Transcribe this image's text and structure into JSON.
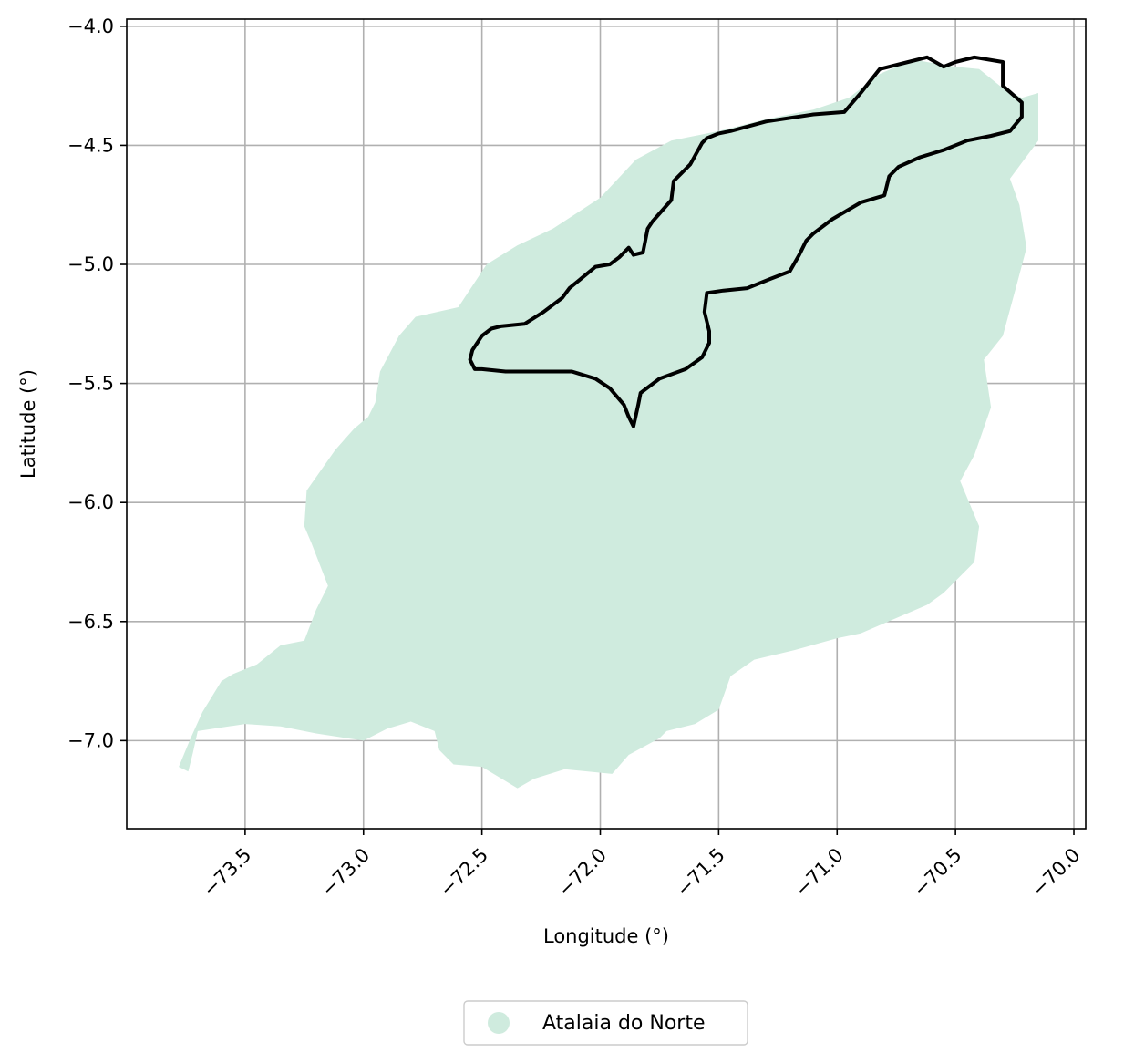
{
  "chart_data": {
    "type": "map",
    "title": "",
    "xlabel": "Longitude (°)",
    "ylabel": "Latitude (°)",
    "xlim": [
      -74.0,
      -69.95
    ],
    "ylim": [
      -7.37,
      -3.97
    ],
    "x_ticks": [
      {
        "value": -73.5,
        "label": "−73.5"
      },
      {
        "value": -73.0,
        "label": "−73.0"
      },
      {
        "value": -72.5,
        "label": "−72.5"
      },
      {
        "value": -72.0,
        "label": "−72.0"
      },
      {
        "value": -71.5,
        "label": "−71.5"
      },
      {
        "value": -71.0,
        "label": "−71.0"
      },
      {
        "value": -70.5,
        "label": "−70.5"
      },
      {
        "value": -70.0,
        "label": "−70.0"
      }
    ],
    "y_ticks": [
      {
        "value": -4.0,
        "label": "−4.0"
      },
      {
        "value": -4.5,
        "label": "−4.5"
      },
      {
        "value": -5.0,
        "label": "−5.0"
      },
      {
        "value": -5.5,
        "label": "−5.5"
      },
      {
        "value": -6.0,
        "label": "−6.0"
      },
      {
        "value": -6.5,
        "label": "−6.5"
      },
      {
        "value": -7.0,
        "label": "−7.0"
      }
    ],
    "grid": true,
    "legend_position": "bottom-center",
    "series": [
      {
        "name": "Atalaia do Norte",
        "kind": "filled-region",
        "color": "#cfebde",
        "coordinates": [
          [
            -73.78,
            -7.11
          ],
          [
            -73.73,
            -6.99
          ],
          [
            -73.68,
            -6.88
          ],
          [
            -73.6,
            -6.75
          ],
          [
            -73.55,
            -6.72
          ],
          [
            -73.45,
            -6.68
          ],
          [
            -73.35,
            -6.6
          ],
          [
            -73.25,
            -6.58
          ],
          [
            -73.2,
            -6.45
          ],
          [
            -73.15,
            -6.35
          ],
          [
            -73.22,
            -6.17
          ],
          [
            -73.25,
            -6.1
          ],
          [
            -73.24,
            -5.95
          ],
          [
            -73.12,
            -5.78
          ],
          [
            -73.04,
            -5.69
          ],
          [
            -72.98,
            -5.64
          ],
          [
            -72.95,
            -5.58
          ],
          [
            -72.93,
            -5.45
          ],
          [
            -72.85,
            -5.3
          ],
          [
            -72.78,
            -5.22
          ],
          [
            -72.6,
            -5.18
          ],
          [
            -72.48,
            -5.0
          ],
          [
            -72.35,
            -4.92
          ],
          [
            -72.2,
            -4.85
          ],
          [
            -72.0,
            -4.72
          ],
          [
            -71.85,
            -4.56
          ],
          [
            -71.7,
            -4.48
          ],
          [
            -71.5,
            -4.44
          ],
          [
            -71.3,
            -4.39
          ],
          [
            -71.1,
            -4.35
          ],
          [
            -70.95,
            -4.3
          ],
          [
            -70.82,
            -4.2
          ],
          [
            -70.68,
            -4.14
          ],
          [
            -70.5,
            -4.17
          ],
          [
            -70.4,
            -4.18
          ],
          [
            -70.3,
            -4.26
          ],
          [
            -70.22,
            -4.3
          ],
          [
            -70.15,
            -4.28
          ],
          [
            -70.15,
            -4.48
          ],
          [
            -70.27,
            -4.64
          ],
          [
            -70.23,
            -4.75
          ],
          [
            -70.2,
            -4.93
          ],
          [
            -70.24,
            -5.08
          ],
          [
            -70.3,
            -5.3
          ],
          [
            -70.38,
            -5.4
          ],
          [
            -70.35,
            -5.6
          ],
          [
            -70.42,
            -5.8
          ],
          [
            -70.48,
            -5.91
          ],
          [
            -70.4,
            -6.1
          ],
          [
            -70.42,
            -6.25
          ],
          [
            -70.55,
            -6.38
          ],
          [
            -70.62,
            -6.43
          ],
          [
            -70.9,
            -6.55
          ],
          [
            -71.0,
            -6.57
          ],
          [
            -71.18,
            -6.62
          ],
          [
            -71.35,
            -6.66
          ],
          [
            -71.45,
            -6.73
          ],
          [
            -71.5,
            -6.87
          ],
          [
            -71.6,
            -6.93
          ],
          [
            -71.72,
            -6.96
          ],
          [
            -71.75,
            -6.99
          ],
          [
            -71.88,
            -7.06
          ],
          [
            -71.95,
            -7.14
          ],
          [
            -72.15,
            -7.12
          ],
          [
            -72.28,
            -7.16
          ],
          [
            -72.35,
            -7.2
          ],
          [
            -72.4,
            -7.17
          ],
          [
            -72.5,
            -7.11
          ],
          [
            -72.62,
            -7.1
          ],
          [
            -72.68,
            -7.04
          ],
          [
            -72.7,
            -6.96
          ],
          [
            -72.8,
            -6.92
          ],
          [
            -72.9,
            -6.95
          ],
          [
            -73.0,
            -7.0
          ],
          [
            -73.2,
            -6.97
          ],
          [
            -73.35,
            -6.94
          ],
          [
            -73.5,
            -6.93
          ],
          [
            -73.7,
            -6.96
          ],
          [
            -73.72,
            -7.05
          ],
          [
            -73.74,
            -7.13
          ]
        ]
      },
      {
        "name": "",
        "kind": "outline",
        "color": "#000000",
        "coordinates": [
          [
            -71.86,
            -5.68
          ],
          [
            -71.88,
            -5.64
          ],
          [
            -71.9,
            -5.59
          ],
          [
            -71.96,
            -5.52
          ],
          [
            -72.02,
            -5.48
          ],
          [
            -72.12,
            -5.45
          ],
          [
            -72.25,
            -5.45
          ],
          [
            -72.4,
            -5.45
          ],
          [
            -72.5,
            -5.44
          ],
          [
            -72.53,
            -5.44
          ],
          [
            -72.55,
            -5.4
          ],
          [
            -72.54,
            -5.36
          ],
          [
            -72.5,
            -5.3
          ],
          [
            -72.46,
            -5.27
          ],
          [
            -72.42,
            -5.26
          ],
          [
            -72.32,
            -5.25
          ],
          [
            -72.24,
            -5.2
          ],
          [
            -72.16,
            -5.14
          ],
          [
            -72.13,
            -5.1
          ],
          [
            -72.02,
            -5.01
          ],
          [
            -71.96,
            -5.0
          ],
          [
            -71.92,
            -4.97
          ],
          [
            -71.88,
            -4.93
          ],
          [
            -71.86,
            -4.96
          ],
          [
            -71.82,
            -4.95
          ],
          [
            -71.8,
            -4.85
          ],
          [
            -71.78,
            -4.82
          ],
          [
            -71.7,
            -4.73
          ],
          [
            -71.69,
            -4.65
          ],
          [
            -71.62,
            -4.58
          ],
          [
            -71.57,
            -4.49
          ],
          [
            -71.55,
            -4.47
          ],
          [
            -71.5,
            -4.45
          ],
          [
            -71.45,
            -4.44
          ],
          [
            -71.3,
            -4.4
          ],
          [
            -71.1,
            -4.37
          ],
          [
            -70.97,
            -4.36
          ],
          [
            -70.9,
            -4.28
          ],
          [
            -70.82,
            -4.18
          ],
          [
            -70.7,
            -4.15
          ],
          [
            -70.62,
            -4.13
          ],
          [
            -70.55,
            -4.17
          ],
          [
            -70.5,
            -4.15
          ],
          [
            -70.42,
            -4.13
          ],
          [
            -70.3,
            -4.15
          ],
          [
            -70.3,
            -4.25
          ],
          [
            -70.22,
            -4.32
          ],
          [
            -70.22,
            -4.38
          ],
          [
            -70.27,
            -4.44
          ],
          [
            -70.35,
            -4.46
          ],
          [
            -70.45,
            -4.48
          ],
          [
            -70.55,
            -4.52
          ],
          [
            -70.65,
            -4.55
          ],
          [
            -70.74,
            -4.59
          ],
          [
            -70.78,
            -4.63
          ],
          [
            -70.8,
            -4.71
          ],
          [
            -70.9,
            -4.74
          ],
          [
            -71.02,
            -4.81
          ],
          [
            -71.1,
            -4.87
          ],
          [
            -71.13,
            -4.9
          ],
          [
            -71.16,
            -4.96
          ],
          [
            -71.2,
            -5.03
          ],
          [
            -71.28,
            -5.06
          ],
          [
            -71.38,
            -5.1
          ],
          [
            -71.48,
            -5.11
          ],
          [
            -71.55,
            -5.12
          ],
          [
            -71.56,
            -5.2
          ],
          [
            -71.54,
            -5.28
          ],
          [
            -71.54,
            -5.33
          ],
          [
            -71.57,
            -5.39
          ],
          [
            -71.64,
            -5.44
          ],
          [
            -71.75,
            -5.48
          ],
          [
            -71.83,
            -5.54
          ],
          [
            -71.84,
            -5.59
          ],
          [
            -71.86,
            -5.68
          ]
        ]
      }
    ]
  },
  "legend": {
    "label": "Atalaia do Norte",
    "color": "#cfebde"
  }
}
